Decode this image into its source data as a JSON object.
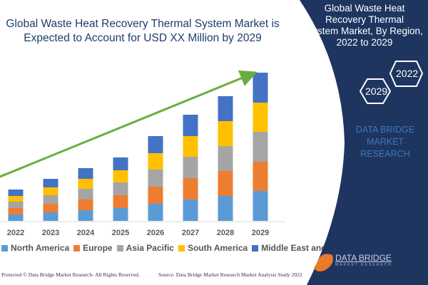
{
  "chart_data": {
    "type": "bar",
    "stacked": true,
    "title": "Global Waste Heat Recovery Thermal System Market is Expected to Account for USD XX Million by 2029",
    "categories": [
      "2022",
      "2023",
      "2024",
      "2025",
      "2026",
      "2027",
      "2028",
      "2029"
    ],
    "series": [
      {
        "name": "North America",
        "color": "#5b9bd5",
        "values": [
          9,
          12,
          15,
          18,
          24,
          30,
          35,
          42
        ]
      },
      {
        "name": "Europe",
        "color": "#ed7d31",
        "values": [
          9,
          12,
          15,
          18,
          24,
          30,
          35,
          41
        ]
      },
      {
        "name": "Asia Pacific",
        "color": "#a5a5a5",
        "values": [
          9,
          12,
          15,
          18,
          24,
          30,
          35,
          42
        ]
      },
      {
        "name": "South America",
        "color": "#ffc000",
        "values": [
          8,
          11,
          14,
          17,
          23,
          29,
          35,
          41
        ]
      },
      {
        "name": "Middle East and Africa",
        "color": "#4472c4",
        "values": [
          9,
          12,
          15,
          18,
          24,
          30,
          35,
          42
        ]
      }
    ],
    "legend_position": "bottom",
    "grid": false,
    "trend_arrow": true
  },
  "footer": {
    "left": "Protected © Data Bridge Market Research- All Rights Reserved.",
    "right": "Source: Data Bridge Market Research Market Analysis Study 2022"
  },
  "panel": {
    "title_lines": [
      "Global Waste Heat Recovery Thermal",
      "System Market, By Region,",
      "2022 to 2029"
    ],
    "hex_start": "2022",
    "hex_end": "2029",
    "brand_lines": [
      "DATA BRIDGE MARKET",
      "RESEARCH"
    ],
    "logo_name": "DATA BRIDGE",
    "logo_sub": "MARKET RESEARCH"
  },
  "colors": {
    "navy": "#1e3560",
    "arrow": "#6aad3d"
  }
}
